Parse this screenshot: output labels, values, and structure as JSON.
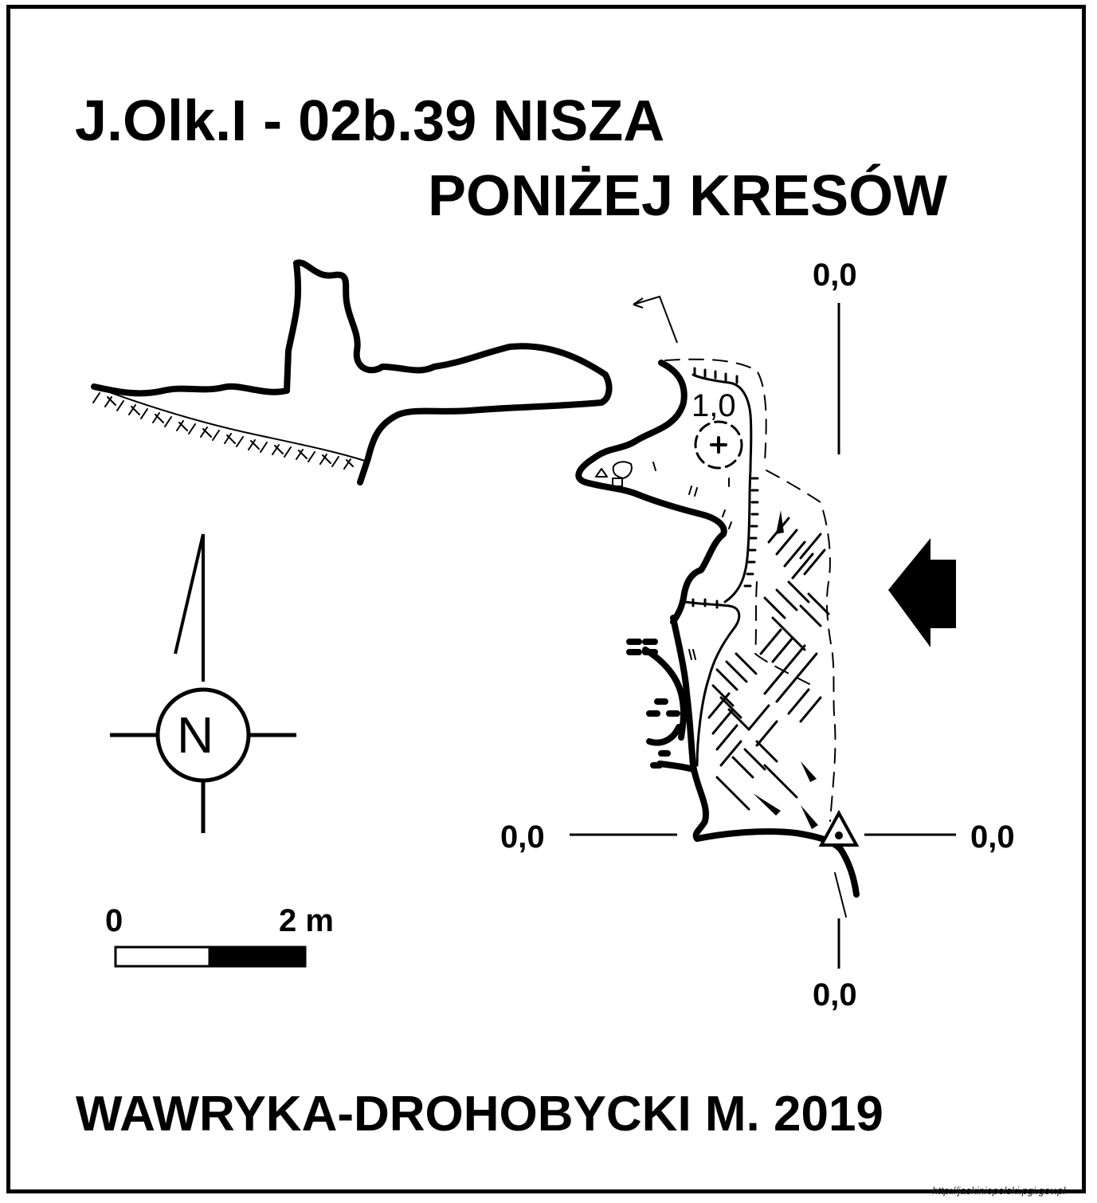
{
  "map": {
    "title_line1": "J.Olk.I - 02b.39  NISZA",
    "title_line2": "PONIŻEJ KRESÓW",
    "author": "WAWRYKA-DROHOBYCKI M. 2019",
    "section_levels": {
      "top": "0,0",
      "left": "0,0",
      "right": "0,0",
      "bottom": "0,0"
    },
    "ceiling_height": "1,0",
    "north_label": "N",
    "scale": {
      "start_label": "0",
      "end_label": "2 m"
    },
    "source_url": "http://jaskiniepolski.pgi.gov.pl"
  }
}
